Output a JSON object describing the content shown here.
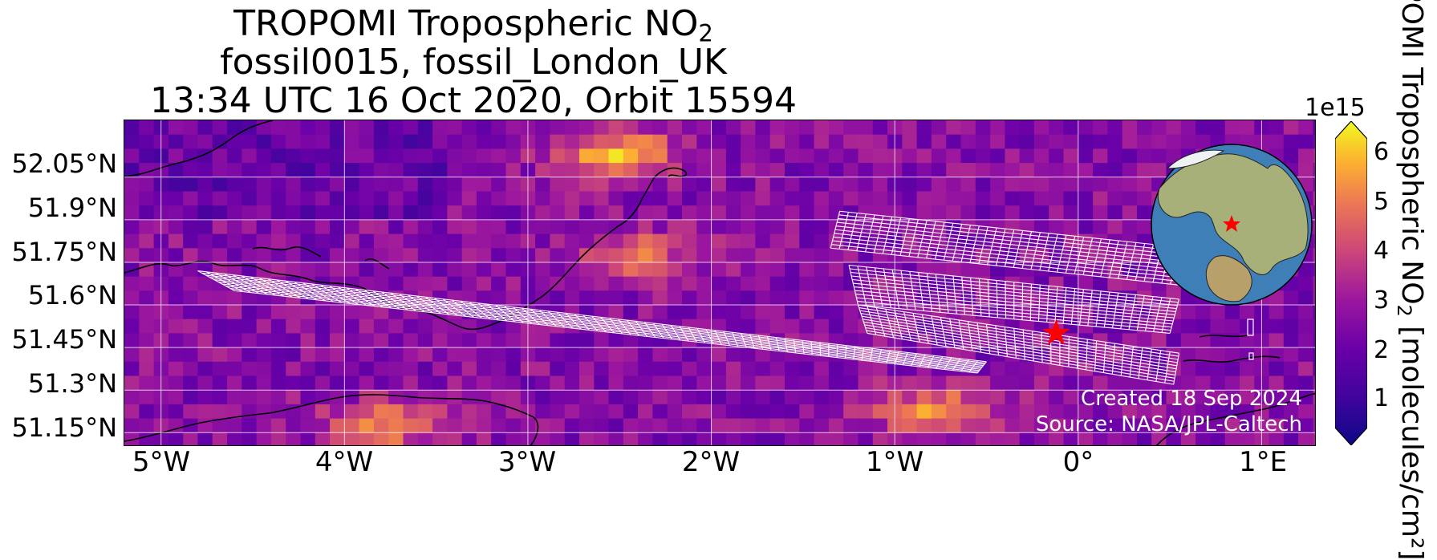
{
  "title": {
    "line1_main": "TROPOMI Tropospheric NO",
    "line1_sub": "2",
    "line2": "fossil0015, fossil_London_UK",
    "line3": "13:34 UTC 16 Oct 2020, Orbit 15594"
  },
  "map": {
    "y_ticks": [
      "52.05°N",
      "51.9°N",
      "51.75°N",
      "51.6°N",
      "51.45°N",
      "51.3°N",
      "51.15°N"
    ],
    "x_ticks": [
      "5°W",
      "4°W",
      "3°W",
      "2°W",
      "1°W",
      "0°",
      "1°E"
    ],
    "credit_line1": "Created 18 Sep 2024",
    "credit_line2": "Source: NASA/JPL-Caltech",
    "target_marker_color": "#ff0000"
  },
  "colorbar": {
    "exponent": "1e15",
    "ticks": [
      "1",
      "2",
      "3",
      "4",
      "5",
      "6"
    ],
    "label_main": "TROPOMI Tropospheric NO",
    "label_sub": "2",
    "label_rest": " [molecules/cm²]",
    "colormap": "plasma"
  },
  "chart_data": {
    "type": "heatmap",
    "title": "TROPOMI Tropospheric NO2 / fossil0015, fossil_London_UK / 13:34 UTC 16 Oct 2020, Orbit 15594",
    "xlabel": "",
    "ylabel": "",
    "xlim": [
      -5.2,
      1.3
    ],
    "ylim": [
      51.1,
      52.25
    ],
    "x_tick_values": [
      -5,
      -4,
      -3,
      -2,
      -1,
      0,
      1
    ],
    "y_tick_values": [
      52.05,
      51.9,
      51.75,
      51.6,
      51.45,
      51.3,
      51.15
    ],
    "colorbar_range": [
      200000000000000.0,
      6500000000000000.0
    ],
    "target": {
      "lon": -0.12,
      "lat": 51.5
    },
    "hotspots": [
      {
        "lon": -2.55,
        "lat": 52.15,
        "value": 5500000000000000.0
      },
      {
        "lon": -2.45,
        "lat": 51.8,
        "value": 4500000000000000.0
      },
      {
        "lon": -0.8,
        "lat": 51.25,
        "value": 5200000000000000.0
      },
      {
        "lon": -3.8,
        "lat": 51.2,
        "value": 4800000000000000.0
      }
    ],
    "grid": true
  }
}
